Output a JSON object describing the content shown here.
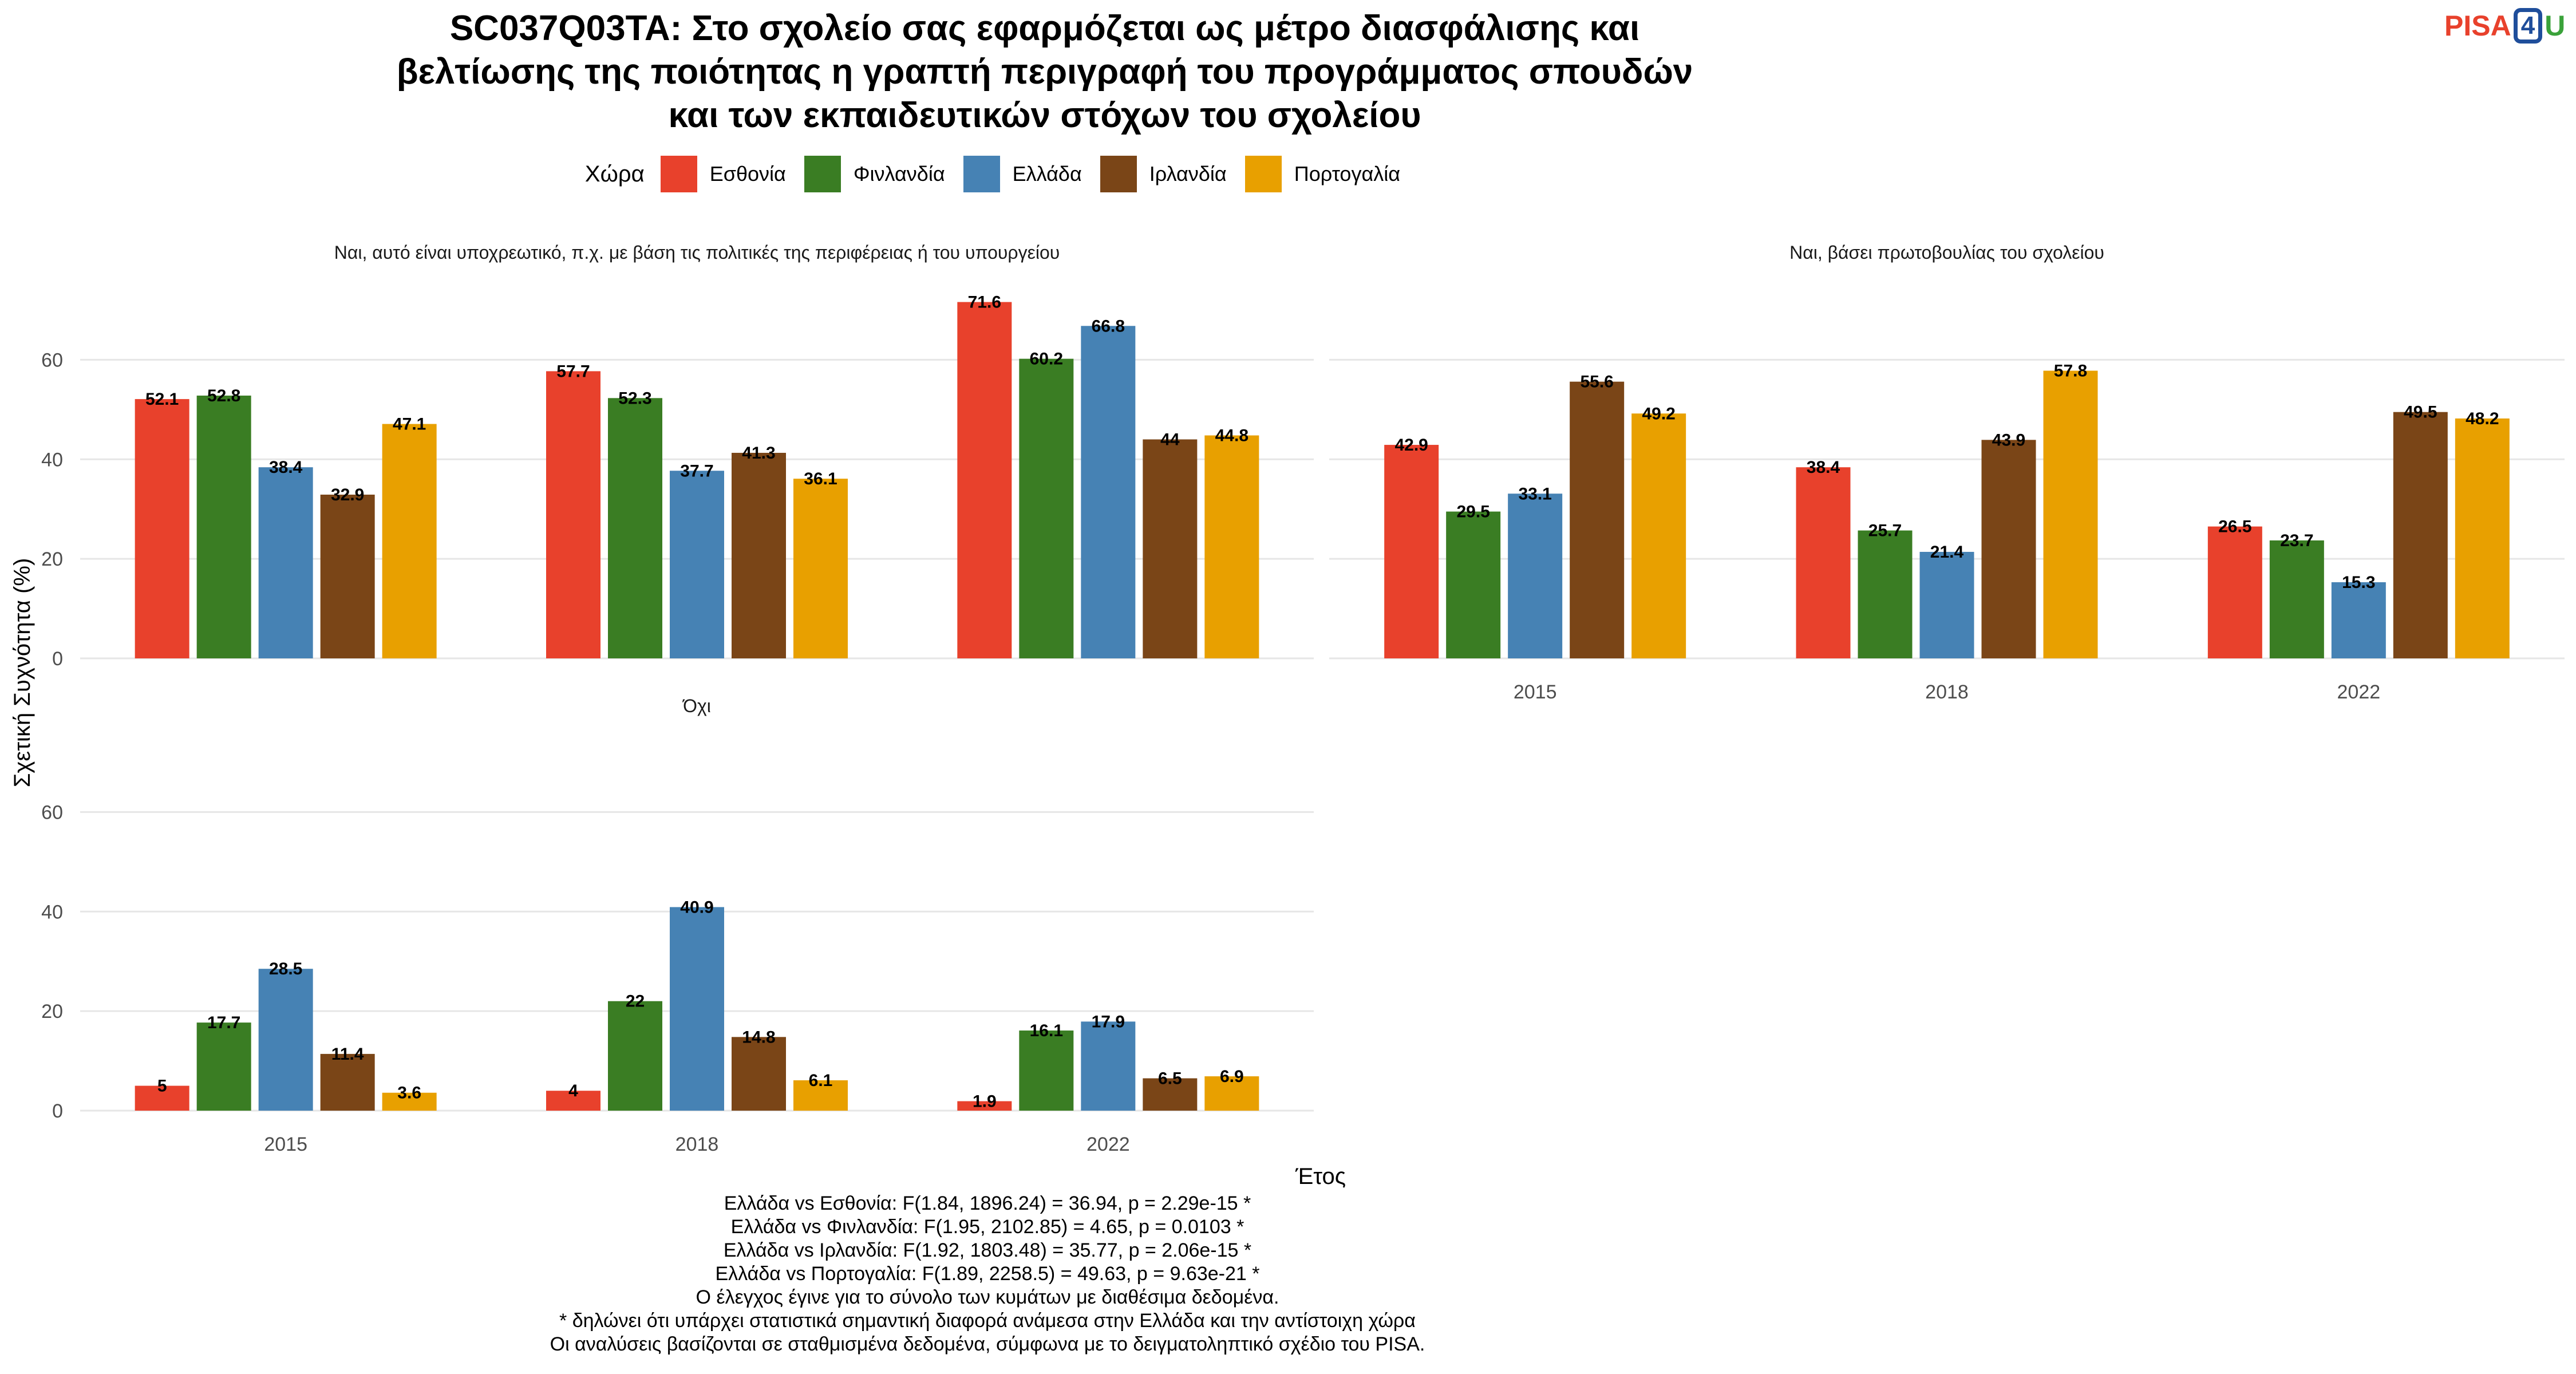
{
  "title": "SC037Q03TA: Στο σχολείο σας εφαρμόζεται ως μέτρο διασφάλισης και\nβελτίωσης της ποιότητας η γραπτή περιγραφή του προγράμματος σπουδών\nκαι των εκπαιδευτικών στόχων του σχολείου",
  "logo": {
    "part1": "PISA",
    "part2": "4",
    "part3": "U"
  },
  "legend": {
    "title": "Χώρα",
    "items": [
      {
        "name": "Εσθονία",
        "color": "#e8412c"
      },
      {
        "name": "Φινλανδία",
        "color": "#3a7d23"
      },
      {
        "name": "Ελλάδα",
        "color": "#4682b4"
      },
      {
        "name": "Ιρλανδία",
        "color": "#7a4517"
      },
      {
        "name": "Πορτογαλία",
        "color": "#e8a000"
      }
    ]
  },
  "chart_data": {
    "type": "bar",
    "xlabel": "Έτος",
    "ylabel": "Σχετική Συχνότητα (%)",
    "ylim": [
      0,
      75
    ],
    "yticks": [
      0,
      20,
      40,
      60
    ],
    "categories": [
      "2015",
      "2018",
      "2022"
    ],
    "panels": [
      {
        "title": "Ναι, αυτό είναι υποχρεωτικό, π.χ. με βάση τις πολιτικές της περιφέρειας ή του υπουργείου",
        "series": [
          {
            "name": "Εσθονία",
            "values": [
              52.1,
              57.7,
              71.6
            ]
          },
          {
            "name": "Φινλανδία",
            "values": [
              52.8,
              52.3,
              60.2
            ]
          },
          {
            "name": "Ελλάδα",
            "values": [
              38.4,
              37.7,
              66.8
            ]
          },
          {
            "name": "Ιρλανδία",
            "values": [
              32.9,
              41.3,
              44
            ]
          },
          {
            "name": "Πορτογαλία",
            "values": [
              47.1,
              36.1,
              44.8
            ]
          }
        ]
      },
      {
        "title": "Ναι, βάσει πρωτοβουλίας του σχολείου",
        "series": [
          {
            "name": "Εσθονία",
            "values": [
              42.9,
              38.4,
              26.5
            ]
          },
          {
            "name": "Φινλανδία",
            "values": [
              29.5,
              25.7,
              23.7
            ]
          },
          {
            "name": "Ελλάδα",
            "values": [
              33.1,
              21.4,
              15.3
            ]
          },
          {
            "name": "Ιρλανδία",
            "values": [
              55.6,
              43.9,
              49.5
            ]
          },
          {
            "name": "Πορτογαλία",
            "values": [
              49.2,
              57.8,
              48.2
            ]
          }
        ]
      },
      {
        "title": "Όχι",
        "series": [
          {
            "name": "Εσθονία",
            "values": [
              5,
              4,
              1.9
            ]
          },
          {
            "name": "Φινλανδία",
            "values": [
              17.7,
              22,
              16.1
            ]
          },
          {
            "name": "Ελλάδα",
            "values": [
              28.5,
              40.9,
              17.9
            ]
          },
          {
            "name": "Ιρλανδία",
            "values": [
              11.4,
              14.8,
              6.5
            ]
          },
          {
            "name": "Πορτογαλία",
            "values": [
              3.6,
              6.1,
              6.9
            ]
          }
        ]
      }
    ]
  },
  "footnotes": [
    "Ελλάδα vs Εσθονία: F(1.84, 1896.24) = 36.94, p = 2.29e-15 *",
    "Ελλάδα vs Φινλανδία: F(1.95, 2102.85) = 4.65, p = 0.0103 *",
    "Ελλάδα vs Ιρλανδία: F(1.92, 1803.48) = 35.77, p = 2.06e-15 *",
    "Ελλάδα vs Πορτογαλία: F(1.89, 2258.5) = 49.63, p = 9.63e-21 *",
    "Ο έλεγχος έγινε για το σύνολο των κυμάτων με διαθέσιμα δεδομένα.",
    "* δηλώνει ότι υπάρχει στατιστικά σημαντική διαφορά ανάμεσα στην Ελλάδα και την αντίστοιχη χώρα",
    "Οι αναλύσεις βασίζονται σε σταθμισμένα δεδομένα, σύμφωνα με το δειγματοληπτικό σχέδιο του PISA."
  ]
}
